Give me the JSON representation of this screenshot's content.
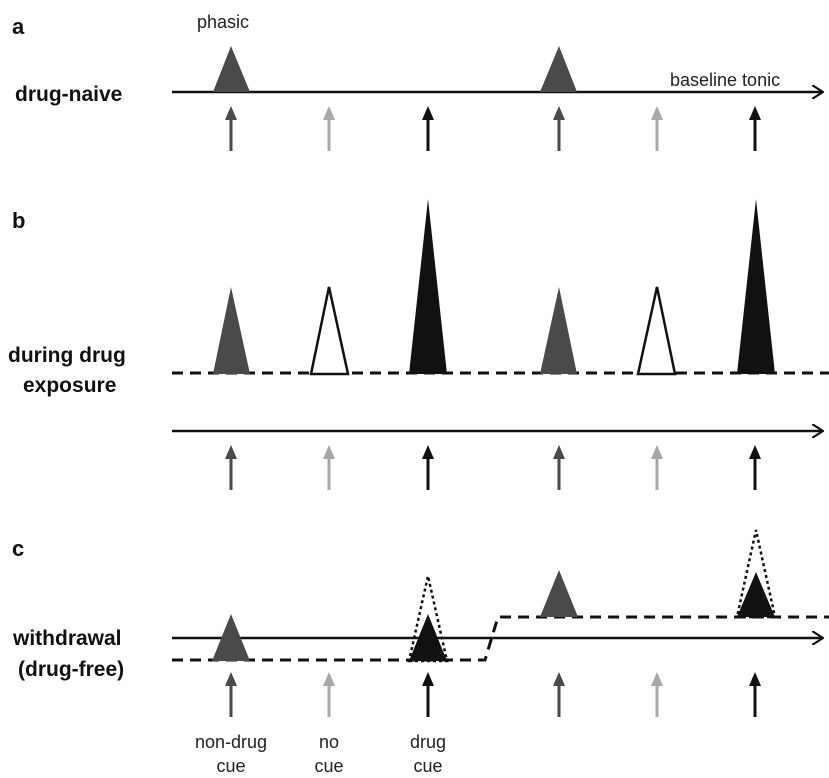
{
  "panels": {
    "a": {
      "letter": "a",
      "label": "drug-naive",
      "phasic_label": "phasic",
      "tonic_label": "baseline tonic"
    },
    "b": {
      "letter": "b",
      "label_line1": "during drug",
      "label_line2": "exposure"
    },
    "c": {
      "letter": "c",
      "label_line1": "withdrawal",
      "label_line2": "(drug-free)"
    }
  },
  "cue_labels": [
    {
      "line1": "non-drug",
      "line2": "cue"
    },
    {
      "line1": "no",
      "line2": "cue"
    },
    {
      "line1": "drug",
      "line2": "cue"
    }
  ],
  "colors": {
    "non_drug": "#4a4a4a",
    "no_cue": "#a8a8a8",
    "drug": "#111111",
    "line": "#111111"
  }
}
